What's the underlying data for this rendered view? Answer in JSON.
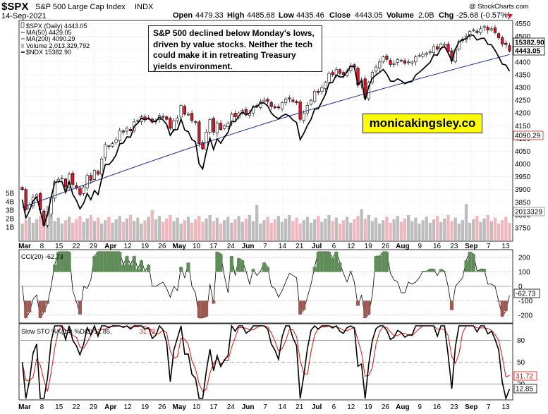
{
  "header": {
    "symbol": "$SPX",
    "name": "S&P 500 Large Cap Index",
    "exchange": "INDX",
    "date": "14-Sep-2021",
    "watermark": "@ StockCharts.com",
    "open_label": "Open",
    "open": "4479.33",
    "high_label": "High",
    "high": "4485.68",
    "low_label": "Low",
    "low": "4435.46",
    "close_label": "Close",
    "close": "4443.05",
    "volume_label": "Volume",
    "volume": "2.0B",
    "chg_label": "Chg",
    "chg": "-25.68 (-0.57%)"
  },
  "legend": {
    "price": "$SPX (Daily) 4443.05",
    "ma50": "MA(50) 4429.05",
    "ma200": "MA(200) 4090.29",
    "volume": "Volume 2,013,329,792",
    "ndx": "$NDX 15382.90"
  },
  "annotation": "S&P 500 declined below Monday's lows, driven by value stocks. Neither the tech could make it in retreating Treasury yields environment.",
  "brand": "monicakingsley.co",
  "markers": {
    "price_ndx": "15382.90",
    "price_close": "4443.05",
    "price_ma200": "4090.29",
    "volume": "2013329",
    "cci": "-62.73",
    "sto_d": "31.72",
    "sto_k": "12.85"
  },
  "panels": {
    "cci_title": "CCI(20) -62.73",
    "sto_title_a": "Slow STO %K(14) %D(3) 12.85,",
    "sto_title_b": "31.72"
  },
  "colors": {
    "up": "#ffffff",
    "down": "#d9152a",
    "ma50": "#1f2d8c",
    "ma200": "#cc1f1f",
    "ndx": "#000000",
    "vol_up": "#bdbdbd",
    "vol_down": "#f0b6be",
    "cci_fill_pos": "#5f8c58",
    "cci_fill_neg": "#9c5a52",
    "sto_d": "#e01010"
  },
  "chart_data": {
    "type": "candlestick",
    "x_axis_labels": [
      "Mar",
      "8",
      "15",
      "22",
      "29",
      "Apr",
      "12",
      "19",
      "26",
      "May",
      "10",
      "17",
      "24",
      "Jun",
      "7",
      "14",
      "21",
      "Jul",
      "6",
      "12",
      "19",
      "26",
      "Aug",
      "9",
      "16",
      "23",
      "Sep",
      "7",
      "13"
    ],
    "price_axis": {
      "ticks": [
        3750,
        3800,
        3850,
        3900,
        3950,
        4000,
        4050,
        4100,
        4150,
        4200,
        4250,
        4300,
        4350,
        4400,
        4450,
        4500,
        4550
      ],
      "range": [
        3700,
        4560
      ]
    },
    "volume_axis": {
      "ticks": [
        "1B",
        "2B",
        "3B",
        "4B",
        "5B"
      ]
    },
    "cci_axis": {
      "ticks": [
        -100,
        0,
        100,
        200,
        -200
      ]
    },
    "sto_axis": {
      "ticks": [
        20,
        50,
        80
      ]
    },
    "price_close": [
      3900,
      3820,
      3840,
      3870,
      3880,
      3820,
      3760,
      3800,
      3870,
      3930,
      3940,
      3945,
      3910,
      3960,
      3920,
      3905,
      3880,
      3910,
      3955,
      3935,
      3975,
      3960,
      4020,
      4075,
      4070,
      4080,
      4095,
      4130,
      4125,
      4140,
      4130,
      4165,
      4170,
      4185,
      4175,
      4180,
      4165,
      4170,
      4190,
      4185,
      4175,
      4140,
      4170,
      4180,
      4230,
      4195,
      4195,
      4170,
      4165,
      4080,
      4060,
      4125,
      4175,
      4125,
      4160,
      4135,
      4150,
      4160,
      4195,
      4185,
      4200,
      4210,
      4195,
      4200,
      4225,
      4225,
      4245,
      4250,
      4245,
      4225,
      4220,
      4220,
      4240,
      4255,
      4255,
      4245,
      4240,
      4175,
      4200,
      4230,
      4250,
      4285,
      4280,
      4300,
      4320,
      4355,
      4350,
      4370,
      4355,
      4350,
      4365,
      4385,
      4380,
      4310,
      4330,
      4260,
      4320,
      4360,
      4380,
      4400,
      4420,
      4410,
      4390,
      4395,
      4410,
      4405,
      4395,
      4400,
      4400,
      4420,
      4425,
      4430,
      4435,
      4440,
      4460,
      4450,
      4470,
      4470,
      4440,
      4405,
      4450,
      4480,
      4490,
      4500,
      4520,
      4525,
      4515,
      4530,
      4540,
      4525,
      4530,
      4515,
      4495,
      4470,
      4468,
      4443
    ],
    "ma50": {
      "name": "MA(50)",
      "start": 3830,
      "end": 4429.05
    },
    "ma200": {
      "name": "MA(200)",
      "start": 3700,
      "end": 4090.29
    },
    "cci_last": -62.73,
    "sto_k_last": 12.85,
    "sto_d_last": 31.72
  }
}
